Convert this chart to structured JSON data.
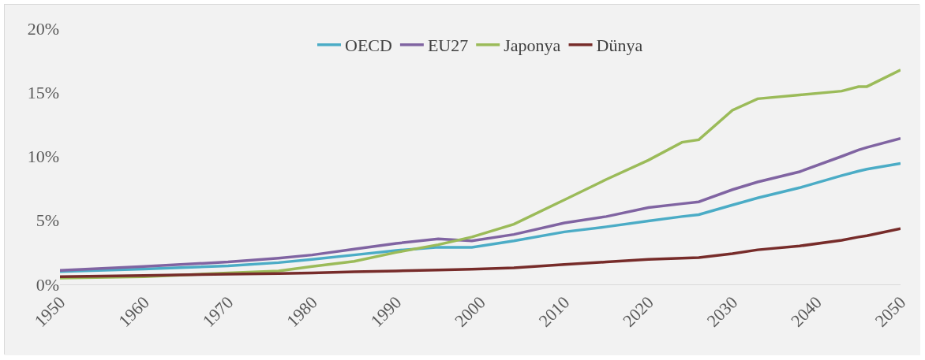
{
  "chart_data": {
    "type": "line",
    "x": [
      1950,
      1960,
      1970,
      1976,
      1980,
      1985,
      1990,
      1995,
      1999,
      2004,
      2010,
      2015,
      2020,
      2024,
      2026,
      2030,
      2033,
      2038,
      2043,
      2045,
      2046,
      2050
    ],
    "series": [
      {
        "name": "OECD",
        "color": "#4bacc6",
        "values": [
          1.0,
          1.2,
          1.45,
          1.7,
          1.95,
          2.3,
          2.65,
          2.9,
          2.9,
          3.4,
          4.1,
          4.5,
          4.95,
          5.3,
          5.45,
          6.2,
          6.75,
          7.55,
          8.5,
          8.85,
          9.0,
          9.45
        ]
      },
      {
        "name": "EU27",
        "color": "#8064a2",
        "values": [
          1.1,
          1.4,
          1.75,
          2.05,
          2.3,
          2.75,
          3.2,
          3.55,
          3.4,
          3.9,
          4.8,
          5.3,
          6.0,
          6.3,
          6.45,
          7.4,
          8.0,
          8.8,
          10.0,
          10.5,
          10.7,
          11.4
        ]
      },
      {
        "name": "Japonya",
        "color": "#9bbb59",
        "values": [
          0.5,
          0.6,
          0.9,
          1.05,
          1.4,
          1.8,
          2.5,
          3.1,
          3.7,
          4.7,
          6.6,
          8.2,
          9.7,
          11.1,
          11.3,
          13.6,
          14.5,
          14.8,
          15.1,
          15.45,
          15.45,
          16.75
        ]
      },
      {
        "name": "Dünya",
        "color": "#772c2a",
        "values": [
          0.6,
          0.7,
          0.8,
          0.85,
          0.9,
          0.98,
          1.05,
          1.13,
          1.18,
          1.3,
          1.55,
          1.75,
          1.95,
          2.05,
          2.1,
          2.4,
          2.7,
          3.0,
          3.45,
          3.7,
          3.8,
          4.35
        ]
      }
    ],
    "xlim": [
      1950,
      2050
    ],
    "xticks": [
      1950,
      1960,
      1970,
      1980,
      1990,
      2000,
      2010,
      2020,
      2030,
      2040,
      2050
    ],
    "ylim": [
      0,
      20
    ],
    "yticks": [
      {
        "value": 0,
        "label": "0%"
      },
      {
        "value": 5,
        "label": "5%"
      },
      {
        "value": 10,
        "label": "10%"
      },
      {
        "value": 15,
        "label": "15%"
      },
      {
        "value": 20,
        "label": "20%"
      }
    ],
    "grid": false,
    "legend": "top",
    "marker": "none",
    "line_style": "solid"
  }
}
